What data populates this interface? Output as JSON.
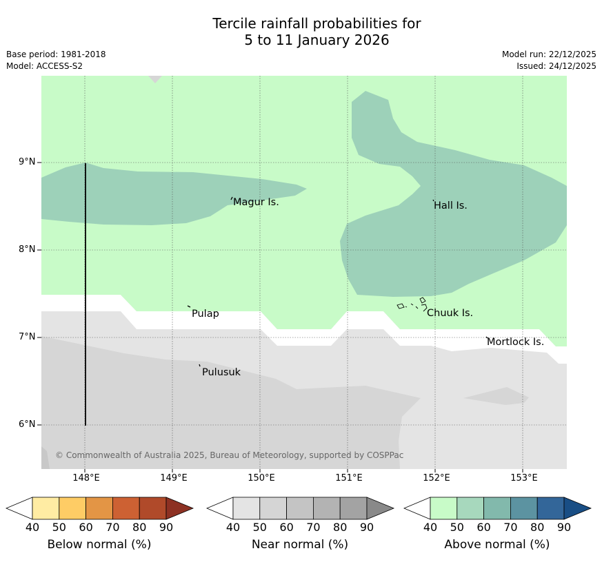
{
  "title": {
    "line1": "Tercile rainfall probabilities for",
    "line2": "5 to 11 January 2026"
  },
  "meta": {
    "base_period": "Base period: 1981-2018",
    "model": "Model: ACCESS-S2",
    "model_run": "Model run: 22/12/2025",
    "issued": "Issued: 24/12/2025"
  },
  "map": {
    "lat_labels": [
      "9°N",
      "8°N",
      "7°N",
      "6°N"
    ],
    "lon_labels": [
      "148°E",
      "149°E",
      "150°E",
      "151°E",
      "152°E",
      "153°E"
    ],
    "places": [
      "Magur Is.",
      "Hall Is.",
      "Pulap",
      "Chuuk Is.",
      "Mortlock Is.",
      "Pulusuk"
    ],
    "copyright": "© Commonwealth of Australia 2025, Bureau of Meteorology, supported by COSPPac",
    "colors": {
      "above_40": "#c8fbc8",
      "above_50": "#9dd1b9",
      "near_40": "#e4e4e4",
      "near_50": "#d6d6d6"
    }
  },
  "colorbars": {
    "values": [
      "40",
      "50",
      "60",
      "70",
      "80",
      "90"
    ],
    "below": {
      "label": "Below normal (%)",
      "colors": [
        "#ffeca3",
        "#fecc65",
        "#e39545",
        "#cd6133",
        "#b04a2a",
        "#8d3123"
      ]
    },
    "near": {
      "label": "Near normal (%)",
      "colors": [
        "#e4e4e4",
        "#d5d5d5",
        "#c4c4c4",
        "#b3b3b3",
        "#a3a3a3",
        "#898989"
      ]
    },
    "above": {
      "label": "Above normal (%)",
      "colors": [
        "#c8fbc8",
        "#a7d8bd",
        "#82b9ac",
        "#5c93a1",
        "#336699",
        "#194e85"
      ]
    }
  }
}
